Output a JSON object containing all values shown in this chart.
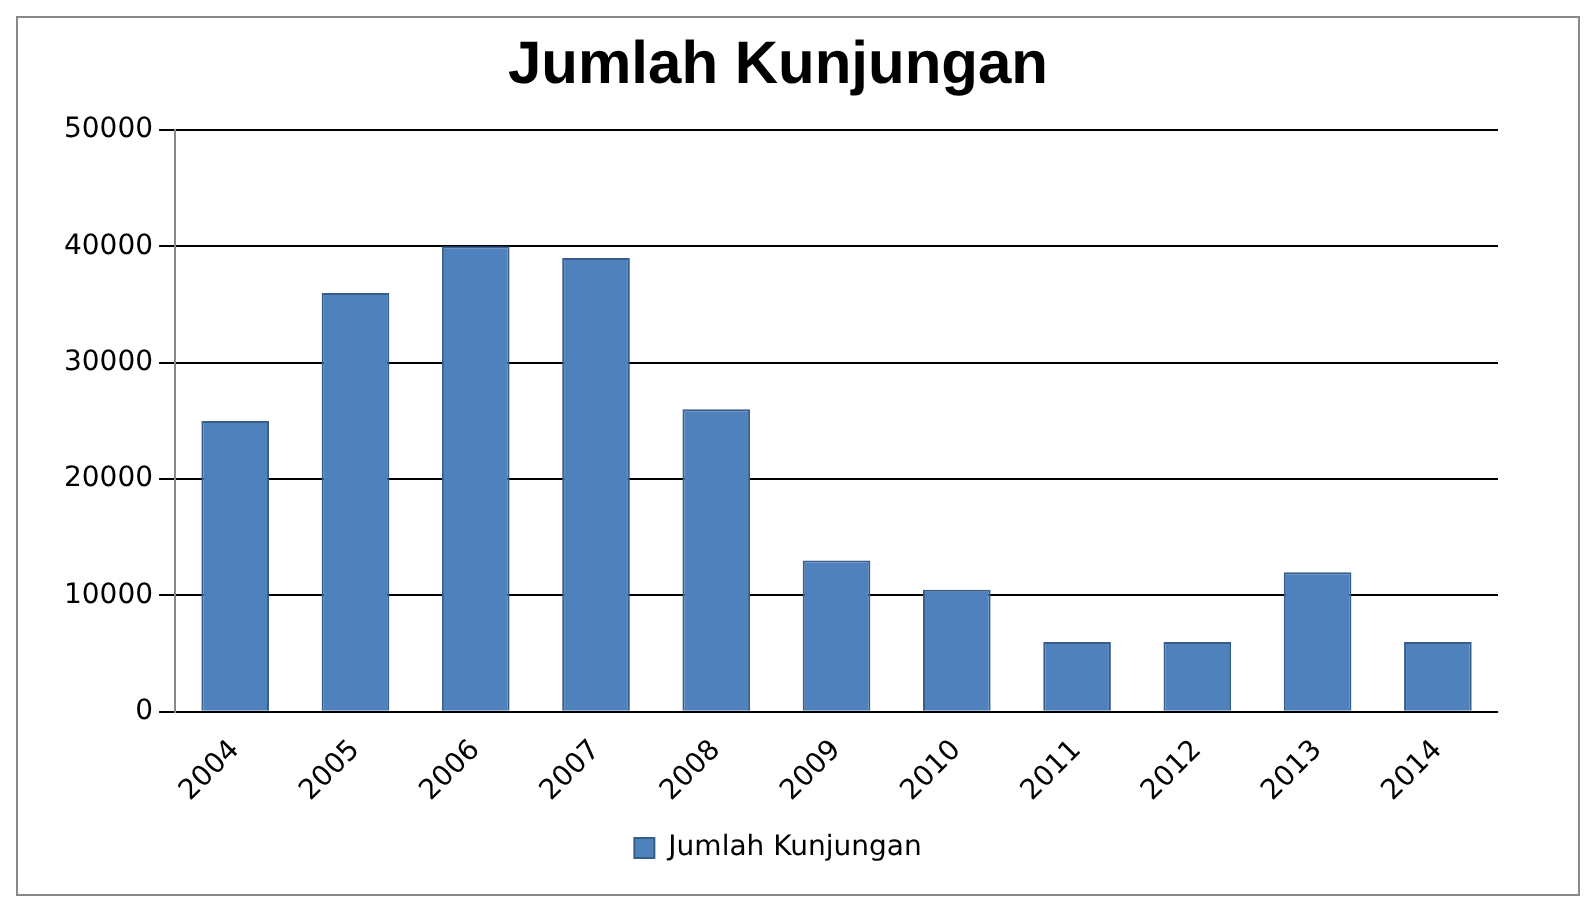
{
  "chart_data": {
    "type": "bar",
    "title": "Jumlah Kunjungan",
    "categories": [
      "2004",
      "2005",
      "2006",
      "2007",
      "2008",
      "2009",
      "2010",
      "2011",
      "2012",
      "2013",
      "2014"
    ],
    "series": [
      {
        "name": "Jumlah Kunjungan",
        "color": "#4f81bd",
        "values": [
          25000,
          36000,
          40000,
          39000,
          26000,
          13000,
          10500,
          6000,
          6000,
          12000,
          6000
        ]
      }
    ],
    "ylim": [
      0,
      50000
    ],
    "yticks": [
      0,
      10000,
      20000,
      30000,
      40000,
      50000
    ],
    "grid": "y",
    "legend": "bottom"
  }
}
